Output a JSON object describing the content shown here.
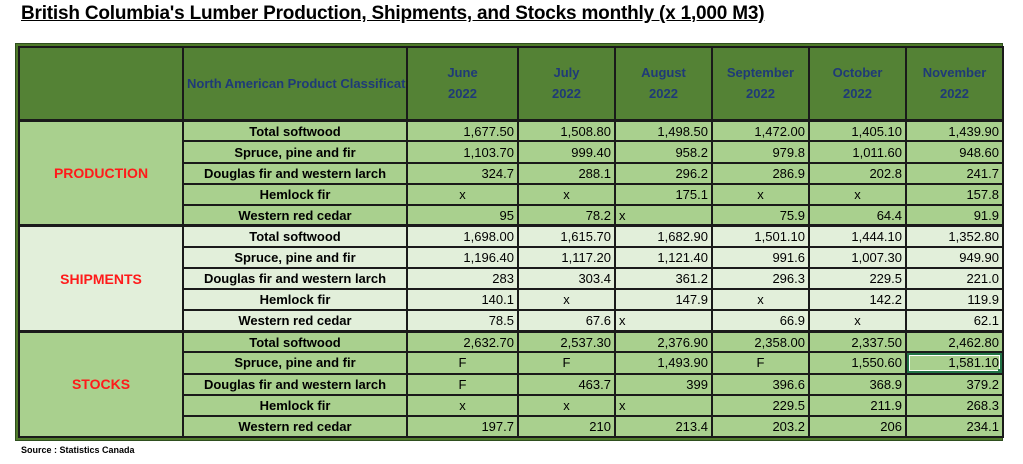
{
  "title": "British Columbia's Lumber Production, Shipments, and Stocks monthly (x 1,000 M3)",
  "header": {
    "category_col": "North American Product Classification System (NAPCS)",
    "months": [
      {
        "month": "June",
        "year": "2022"
      },
      {
        "month": "July",
        "year": "2022"
      },
      {
        "month": "August",
        "year": "2022"
      },
      {
        "month": "September",
        "year": "2022"
      },
      {
        "month": "October",
        "year": "2022"
      },
      {
        "month": "November",
        "year": "2022"
      }
    ]
  },
  "sections": [
    {
      "name": "PRODUCTION",
      "rows": [
        {
          "label": "Total softwood",
          "values": [
            "1,677.50",
            "1,508.80",
            "1,498.50",
            "1,472.00",
            "1,405.10",
            "1,439.90"
          ]
        },
        {
          "label": "Spruce, pine and fir",
          "values": [
            "1,103.70",
            "999.40",
            "958.2",
            "979.8",
            "1,011.60",
            "948.60"
          ]
        },
        {
          "label": "Douglas fir and western larch",
          "values": [
            "324.7",
            "288.1",
            "296.2",
            "286.9",
            "202.8",
            "241.7"
          ]
        },
        {
          "label": "Hemlock fir",
          "values": [
            "x",
            "x",
            "175.1",
            "x",
            "x",
            "157.8"
          ]
        },
        {
          "label": "Western red cedar",
          "values": [
            "95",
            "78.2",
            "x",
            "75.9",
            "64.4",
            "91.9"
          ]
        }
      ]
    },
    {
      "name": "SHIPMENTS",
      "rows": [
        {
          "label": "Total softwood",
          "values": [
            "1,698.00",
            "1,615.70",
            "1,682.90",
            "1,501.10",
            "1,444.10",
            "1,352.80"
          ]
        },
        {
          "label": "Spruce, pine and fir",
          "values": [
            "1,196.40",
            "1,117.20",
            "1,121.40",
            "991.6",
            "1,007.30",
            "949.90"
          ]
        },
        {
          "label": "Douglas fir and western larch",
          "values": [
            "283",
            "303.4",
            "361.2",
            "296.3",
            "229.5",
            "221.0"
          ]
        },
        {
          "label": "Hemlock fir",
          "values": [
            "140.1",
            "x",
            "147.9",
            "x",
            "142.2",
            "119.9"
          ]
        },
        {
          "label": "Western red cedar",
          "values": [
            "78.5",
            "67.6",
            "x",
            "66.9",
            "x",
            "62.1"
          ]
        }
      ]
    },
    {
      "name": "STOCKS",
      "rows": [
        {
          "label": "Total softwood",
          "values": [
            "2,632.70",
            "2,537.30",
            "2,376.90",
            "2,358.00",
            "2,337.50",
            "2,462.80"
          ]
        },
        {
          "label": "Spruce, pine and fir",
          "values": [
            "F",
            "F",
            "1,493.90",
            "F",
            "1,550.60",
            "1,581.10"
          ]
        },
        {
          "label": "Douglas fir and western larch",
          "values": [
            "F",
            "463.7",
            "399",
            "396.6",
            "368.9",
            "379.2"
          ]
        },
        {
          "label": "Hemlock fir",
          "values": [
            "x",
            "x",
            "x",
            "229.5",
            "211.9",
            "268.3"
          ]
        },
        {
          "label": "Western red cedar",
          "values": [
            "197.7",
            "210",
            "213.4",
            "203.2",
            "206",
            "234.1"
          ]
        }
      ]
    }
  ],
  "source": "Source : Statistics Canada",
  "colors": {
    "header_bg": "#548235",
    "header_text": "#1f3a78",
    "production_bg": "#a9d08e",
    "shipments_bg": "#e2efda",
    "stocks_bg": "#a9d08e",
    "section_label": "#ff1a1a",
    "selection": "#217346"
  }
}
